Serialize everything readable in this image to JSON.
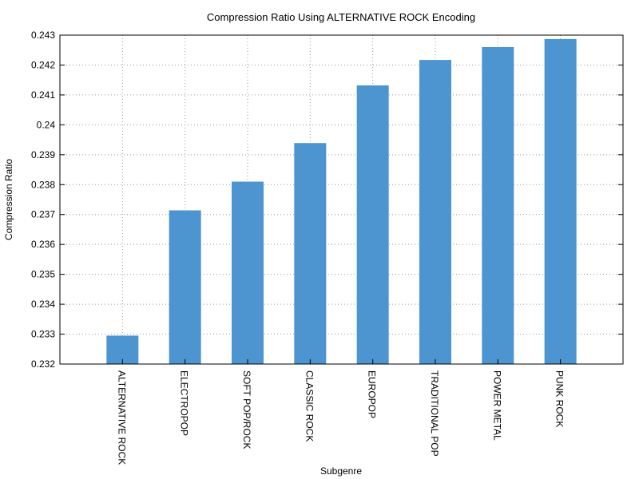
{
  "chart_data": {
    "type": "bar",
    "title": "Compression Ratio Using ALTERNATIVE ROCK Encoding",
    "xlabel": "Subgenre",
    "ylabel": "Compression Ratio",
    "categories": [
      "ALTERNATIVE ROCK",
      "ELECTROPOP",
      "SOFT POP/ROCK",
      "CLASSIC ROCK",
      "EUROPOP",
      "TRADITIONAL POP",
      "POWER METAL",
      "PUNK ROCK"
    ],
    "values": [
      0.23295,
      0.23714,
      0.2381,
      0.23939,
      0.24132,
      0.24217,
      0.2426,
      0.24287
    ],
    "ylim": [
      0.232,
      0.243
    ],
    "yticks": [
      "0.232",
      "0.233",
      "0.234",
      "0.235",
      "0.236",
      "0.237",
      "0.238",
      "0.239",
      "0.24",
      "0.241",
      "0.242",
      "0.243"
    ],
    "grid": true,
    "bar_color": "#4d95d0"
  }
}
